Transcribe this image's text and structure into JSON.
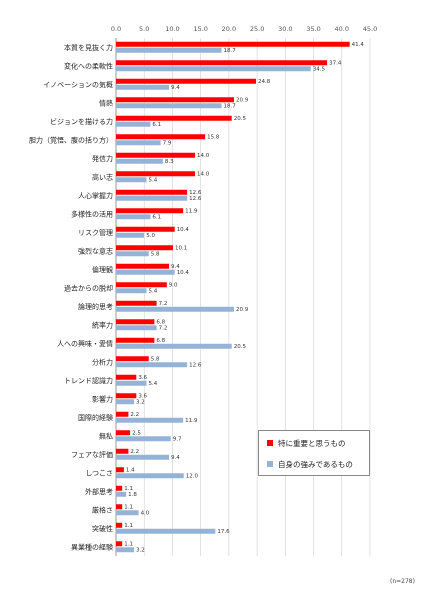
{
  "chart_data": {
    "type": "bar",
    "orientation": "horizontal",
    "xlim": [
      0,
      45
    ],
    "ticks": [
      "0.0",
      "5.0",
      "10.0",
      "15.0",
      "20.0",
      "25.0",
      "30.0",
      "35.0",
      "40.0",
      "45.0"
    ],
    "grid": true,
    "legend_position": "bottom-right",
    "categories": [
      "本質を見抜く力",
      "変化への柔軟性",
      "イノベーションの気概",
      "情熱",
      "ビジョンを描ける力",
      "胆力（覚悟、腹の括り方）",
      "発信力",
      "高い志",
      "人心掌握力",
      "多様性の活用",
      "リスク管理",
      "強烈な意志",
      "倫理観",
      "過去からの脱却",
      "論理的思考",
      "統率力",
      "人への興味・愛情",
      "分析力",
      "トレンド認識力",
      "影響力",
      "国際的経験",
      "無私",
      "フェアな評価",
      "しつこさ",
      "外部思考",
      "厳格さ",
      "突破性",
      "異業種の経験"
    ],
    "series": [
      {
        "name": "特に重要と思うもの",
        "color": "#ff0000",
        "values": [
          41.4,
          37.4,
          24.8,
          20.9,
          20.5,
          15.8,
          14.0,
          14.0,
          12.6,
          11.9,
          10.4,
          10.1,
          9.4,
          9.0,
          7.2,
          6.8,
          6.8,
          5.8,
          3.6,
          3.6,
          2.2,
          2.5,
          2.2,
          1.4,
          1.1,
          1.1,
          1.1,
          1.1
        ]
      },
      {
        "name": "自身の強みであるもの",
        "color": "#95b3d7",
        "values": [
          18.7,
          34.5,
          9.4,
          18.7,
          6.1,
          7.9,
          8.3,
          5.4,
          12.6,
          6.1,
          5.0,
          5.8,
          10.4,
          5.4,
          20.9,
          7.2,
          20.5,
          12.6,
          5.4,
          3.2,
          11.9,
          9.7,
          9.4,
          12.0,
          1.8,
          4.0,
          17.6,
          3.2
        ]
      }
    ]
  },
  "note": "(n=278)"
}
